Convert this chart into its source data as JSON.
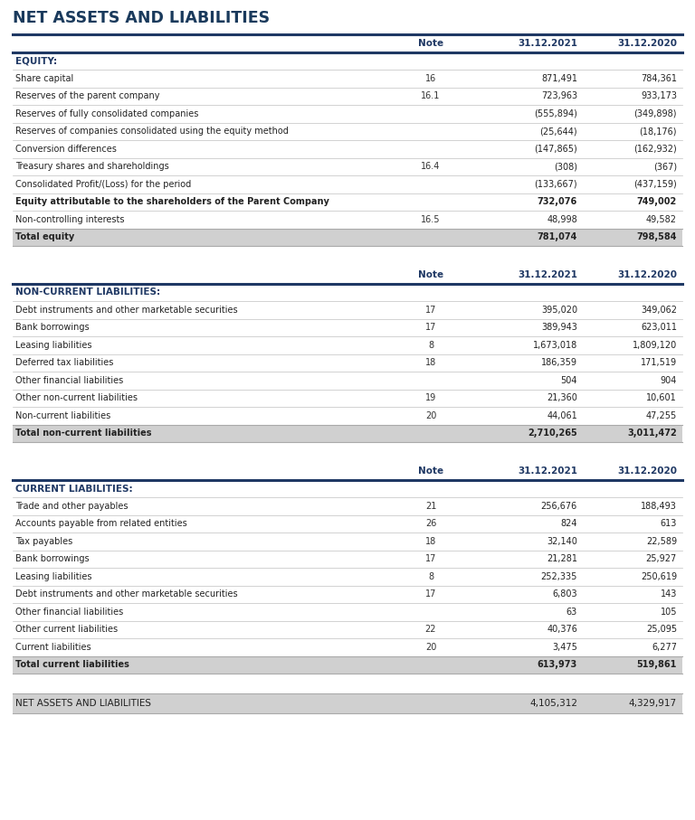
{
  "title": "NET ASSETS AND LIABILITIES",
  "title_color": "#1a3a5c",
  "dark_blue": "#1f3864",
  "section_bg": "#d0d0d0",
  "border_color": "#c0c0c0",
  "sections": [
    {
      "section_label": "EQUITY:",
      "rows": [
        {
          "label": "Share capital",
          "note": "16",
          "val2021": "871,491",
          "val2020": "784,361",
          "bold": false,
          "total_row": false
        },
        {
          "label": "Reserves of the parent company",
          "note": "16.1",
          "val2021": "723,963",
          "val2020": "933,173",
          "bold": false,
          "total_row": false
        },
        {
          "label": "Reserves of fully consolidated companies",
          "note": "",
          "val2021": "(555,894)",
          "val2020": "(349,898)",
          "bold": false,
          "total_row": false
        },
        {
          "label": "Reserves of companies consolidated using the equity method",
          "note": "",
          "val2021": "(25,644)",
          "val2020": "(18,176)",
          "bold": false,
          "total_row": false
        },
        {
          "label": "Conversion differences",
          "note": "",
          "val2021": "(147,865)",
          "val2020": "(162,932)",
          "bold": false,
          "total_row": false
        },
        {
          "label": "Treasury shares and shareholdings",
          "note": "16.4",
          "val2021": "(308)",
          "val2020": "(367)",
          "bold": false,
          "total_row": false
        },
        {
          "label": "Consolidated Profit/(Loss) for the period",
          "note": "",
          "val2021": "(133,667)",
          "val2020": "(437,159)",
          "bold": false,
          "total_row": false
        },
        {
          "label": "Equity attributable to the shareholders of the Parent Company",
          "note": "",
          "val2021": "732,076",
          "val2020": "749,002",
          "bold": true,
          "total_row": false
        },
        {
          "label": "Non-controlling interests",
          "note": "16.5",
          "val2021": "48,998",
          "val2020": "49,582",
          "bold": false,
          "total_row": false
        },
        {
          "label": "Total equity",
          "note": "",
          "val2021": "781,074",
          "val2020": "798,584",
          "bold": true,
          "total_row": true
        }
      ]
    },
    {
      "section_label": "NON-CURRENT LIABILITIES:",
      "rows": [
        {
          "label": "Debt instruments and other marketable securities",
          "note": "17",
          "val2021": "395,020",
          "val2020": "349,062",
          "bold": false,
          "total_row": false
        },
        {
          "label": "Bank borrowings",
          "note": "17",
          "val2021": "389,943",
          "val2020": "623,011",
          "bold": false,
          "total_row": false
        },
        {
          "label": "Leasing liabilities",
          "note": "8",
          "val2021": "1,673,018",
          "val2020": "1,809,120",
          "bold": false,
          "total_row": false
        },
        {
          "label": "Deferred tax liabilities",
          "note": "18",
          "val2021": "186,359",
          "val2020": "171,519",
          "bold": false,
          "total_row": false
        },
        {
          "label": "Other financial liabilities",
          "note": "",
          "val2021": "504",
          "val2020": "904",
          "bold": false,
          "total_row": false
        },
        {
          "label": "Other non-current liabilities",
          "note": "19",
          "val2021": "21,360",
          "val2020": "10,601",
          "bold": false,
          "total_row": false
        },
        {
          "label": "Non-current liabilities",
          "note": "20",
          "val2021": "44,061",
          "val2020": "47,255",
          "bold": false,
          "total_row": false
        },
        {
          "label": "Total non-current liabilities",
          "note": "",
          "val2021": "2,710,265",
          "val2020": "3,011,472",
          "bold": true,
          "total_row": true
        }
      ]
    },
    {
      "section_label": "CURRENT LIABILITIES:",
      "rows": [
        {
          "label": "Trade and other payables",
          "note": "21",
          "val2021": "256,676",
          "val2020": "188,493",
          "bold": false,
          "total_row": false
        },
        {
          "label": "Accounts payable from related entities",
          "note": "26",
          "val2021": "824",
          "val2020": "613",
          "bold": false,
          "total_row": false
        },
        {
          "label": "Tax payables",
          "note": "18",
          "val2021": "32,140",
          "val2020": "22,589",
          "bold": false,
          "total_row": false
        },
        {
          "label": "Bank borrowings",
          "note": "17",
          "val2021": "21,281",
          "val2020": "25,927",
          "bold": false,
          "total_row": false
        },
        {
          "label": "Leasing liabilities",
          "note": "8",
          "val2021": "252,335",
          "val2020": "250,619",
          "bold": false,
          "total_row": false
        },
        {
          "label": "Debt instruments and other marketable securities",
          "note": "17",
          "val2021": "6,803",
          "val2020": "143",
          "bold": false,
          "total_row": false
        },
        {
          "label": "Other financial liabilities",
          "note": "",
          "val2021": "63",
          "val2020": "105",
          "bold": false,
          "total_row": false
        },
        {
          "label": "Other current liabilities",
          "note": "22",
          "val2021": "40,376",
          "val2020": "25,095",
          "bold": false,
          "total_row": false
        },
        {
          "label": "Current liabilities",
          "note": "20",
          "val2021": "3,475",
          "val2020": "6,277",
          "bold": false,
          "total_row": false
        },
        {
          "label": "Total current liabilities",
          "note": "",
          "val2021": "613,973",
          "val2020": "519,861",
          "bold": true,
          "total_row": true
        }
      ]
    }
  ],
  "footer_row": {
    "label": "NET ASSETS AND LIABILITIES",
    "val2021": "4,105,312",
    "val2020": "4,329,917"
  }
}
